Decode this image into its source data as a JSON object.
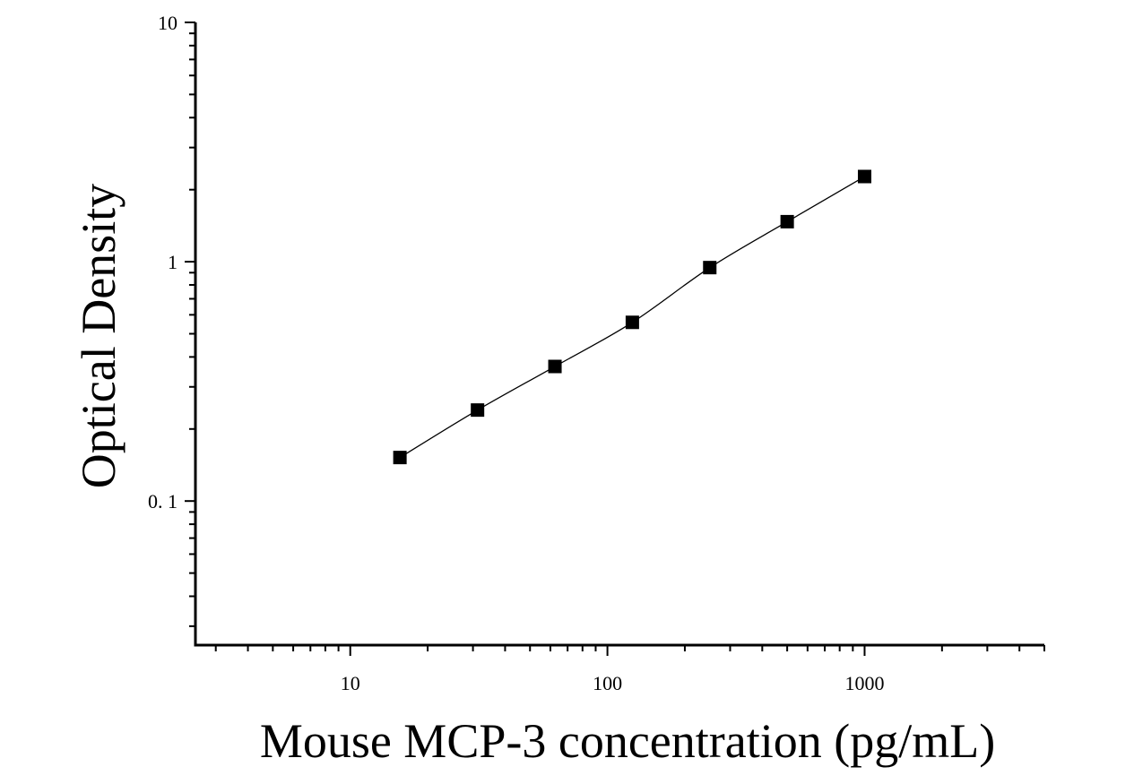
{
  "chart_data": {
    "type": "scatter",
    "xlabel": "Mouse MCP-3 concentration (pg/mL)",
    "ylabel": "Optical Density",
    "xscale": "log",
    "yscale": "log",
    "xlim": [
      2.5,
      5000
    ],
    "ylim": [
      0.025,
      10
    ],
    "x_ticks": [
      {
        "value": 10,
        "label": "10"
      },
      {
        "value": 100,
        "label": "100"
      },
      {
        "value": 1000,
        "label": "1000"
      }
    ],
    "y_ticks": [
      {
        "value": 0.1,
        "label": "0. 1"
      },
      {
        "value": 1,
        "label": "1"
      },
      {
        "value": 10,
        "label": "10"
      }
    ],
    "grid": false,
    "legend": "none",
    "series": [
      {
        "marker": "square",
        "color": "#000000",
        "x": [
          15.6,
          31.25,
          62.5,
          125,
          250,
          500,
          1000
        ],
        "y": [
          0.152,
          0.24,
          0.365,
          0.558,
          0.945,
          1.47,
          2.27
        ],
        "fit_line": true
      }
    ]
  }
}
